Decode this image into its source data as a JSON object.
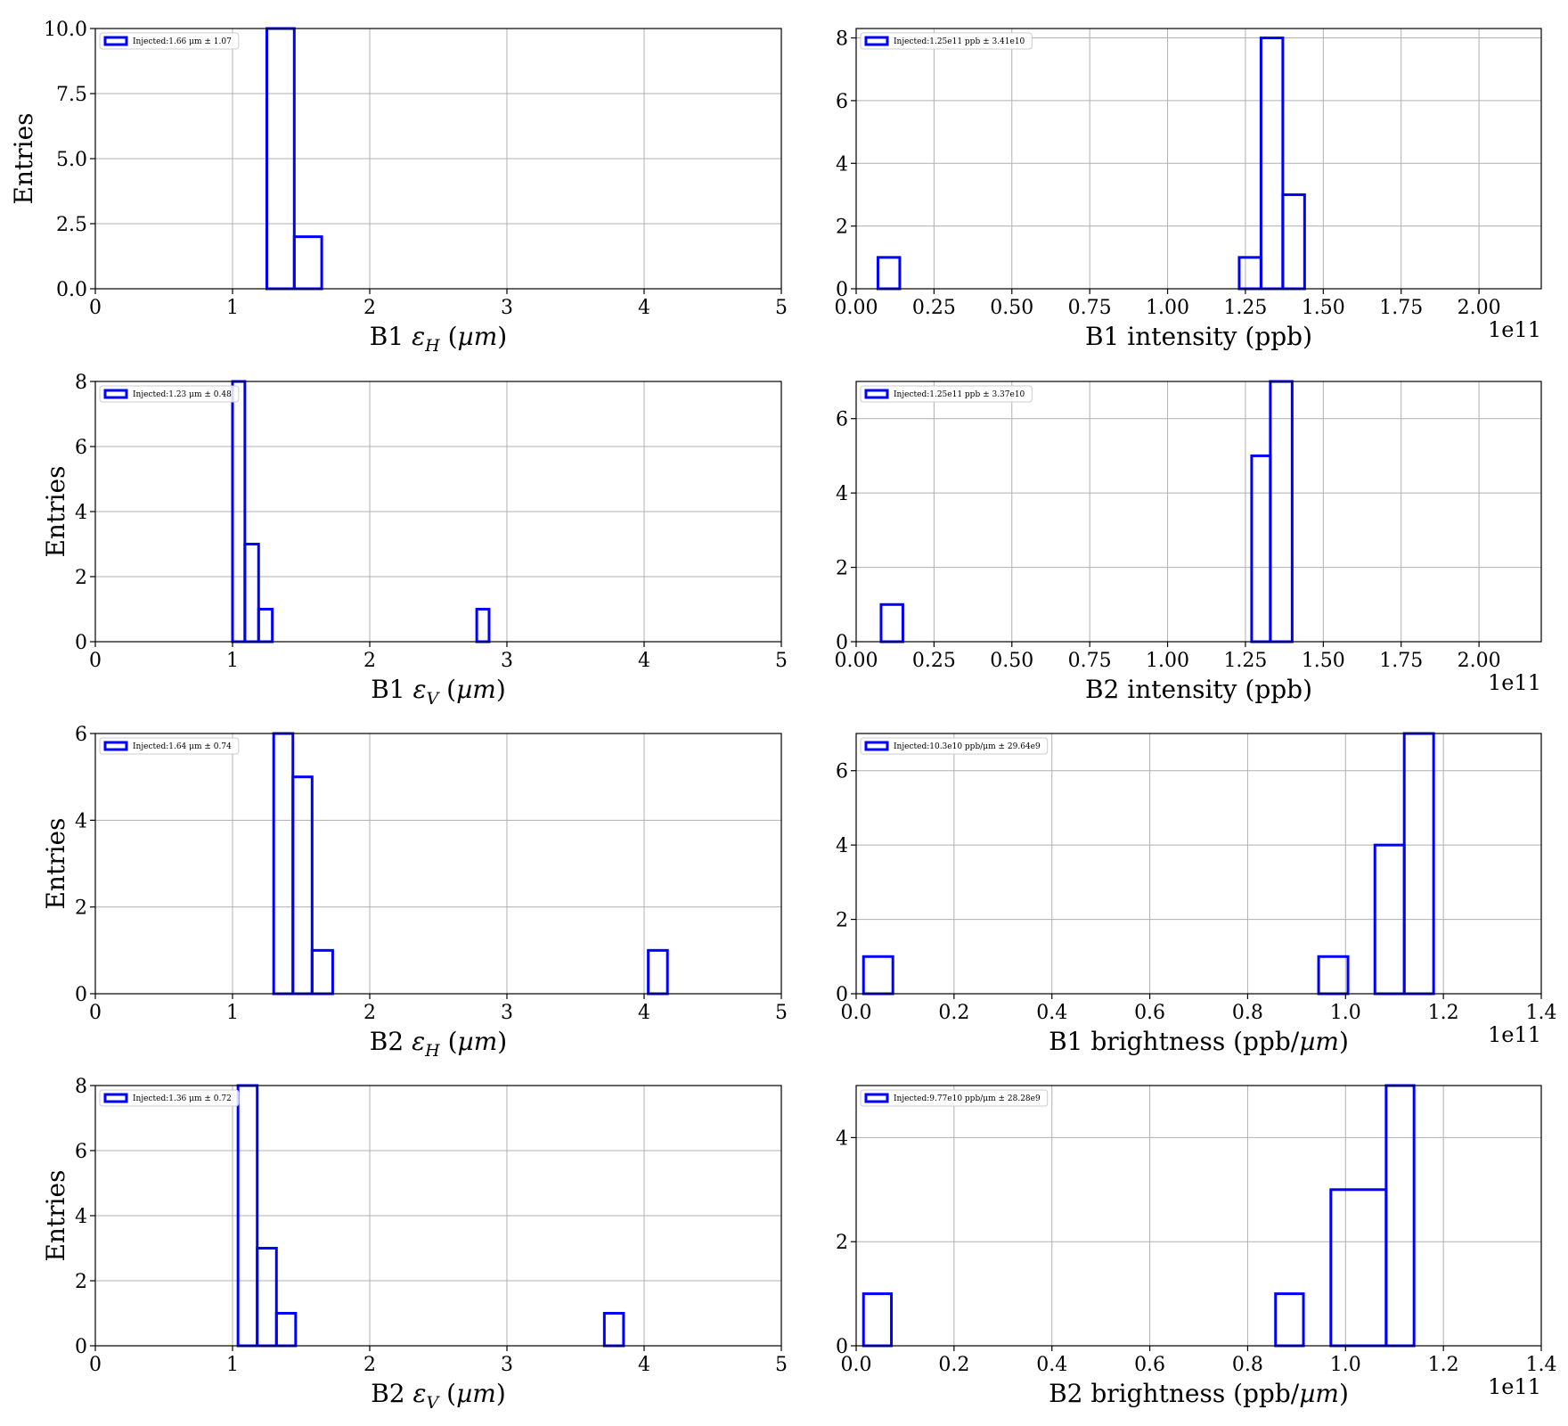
{
  "style": {
    "series_color": "#0000ff",
    "grid_color": "#b0b0b0"
  },
  "chart_data": [
    {
      "type": "histogram",
      "xlabel": "B1 εH (µm)",
      "ylabel": "Entries",
      "xlim": [
        0,
        5
      ],
      "ylim": [
        0,
        10.0
      ],
      "xticks": [
        "0",
        "1",
        "2",
        "3",
        "4",
        "5"
      ],
      "yticks": [
        "0.0",
        "2.5",
        "5.0",
        "7.5",
        "10.0"
      ],
      "offset_label": "",
      "legend": "Injected:1.66 μm ± 1.07",
      "legend_position": "upper-left",
      "grid": true,
      "bins": [
        {
          "x0": 1.25,
          "x1": 1.45,
          "count": 10
        },
        {
          "x0": 1.45,
          "x1": 1.65,
          "count": 2
        }
      ]
    },
    {
      "type": "histogram",
      "xlabel": "B1 intensity (ppb)",
      "ylabel": "",
      "xlim": [
        0,
        2.2
      ],
      "ylim": [
        0,
        8.3
      ],
      "xticks": [
        "0.00",
        "0.25",
        "0.50",
        "0.75",
        "1.00",
        "1.25",
        "1.50",
        "1.75",
        "2.00"
      ],
      "yticks": [
        "0",
        "2",
        "4",
        "6",
        "8"
      ],
      "offset_label": "1e11",
      "legend": "Injected:1.25e11 ppb ± 3.41e10",
      "legend_position": "upper-left",
      "grid": true,
      "bins": [
        {
          "x0": 0.07,
          "x1": 0.14,
          "count": 1
        },
        {
          "x0": 1.23,
          "x1": 1.3,
          "count": 1
        },
        {
          "x0": 1.3,
          "x1": 1.37,
          "count": 8
        },
        {
          "x0": 1.37,
          "x1": 1.44,
          "count": 3
        }
      ]
    },
    {
      "type": "histogram",
      "xlabel": "B1 εV (µm)",
      "ylabel": "Entries",
      "xlim": [
        0,
        5
      ],
      "ylim": [
        0,
        8.0
      ],
      "xticks": [
        "0",
        "1",
        "2",
        "3",
        "4",
        "5"
      ],
      "yticks": [
        "0",
        "2",
        "4",
        "6",
        "8"
      ],
      "offset_label": "",
      "legend": "Injected:1.23 μm ± 0.48",
      "legend_position": "upper-left",
      "grid": true,
      "bins": [
        {
          "x0": 1.0,
          "x1": 1.09,
          "count": 8
        },
        {
          "x0": 1.09,
          "x1": 1.19,
          "count": 3
        },
        {
          "x0": 1.19,
          "x1": 1.29,
          "count": 1
        },
        {
          "x0": 2.78,
          "x1": 2.87,
          "count": 1
        }
      ]
    },
    {
      "type": "histogram",
      "xlabel": "B2 intensity (ppb)",
      "ylabel": "",
      "xlim": [
        0,
        2.2
      ],
      "ylim": [
        0,
        7.0
      ],
      "xticks": [
        "0.00",
        "0.25",
        "0.50",
        "0.75",
        "1.00",
        "1.25",
        "1.50",
        "1.75",
        "2.00"
      ],
      "yticks": [
        "0",
        "2",
        "4",
        "6"
      ],
      "offset_label": "1e11",
      "legend": "Injected:1.25e11 ppb ± 3.37e10",
      "legend_position": "upper-left",
      "grid": true,
      "bins": [
        {
          "x0": 0.08,
          "x1": 0.15,
          "count": 1
        },
        {
          "x0": 1.27,
          "x1": 1.33,
          "count": 5
        },
        {
          "x0": 1.33,
          "x1": 1.4,
          "count": 7
        }
      ]
    },
    {
      "type": "histogram",
      "xlabel": "B2 εH (µm)",
      "ylabel": "Entries",
      "xlim": [
        0,
        5
      ],
      "ylim": [
        0,
        6.0
      ],
      "xticks": [
        "0",
        "1",
        "2",
        "3",
        "4",
        "5"
      ],
      "yticks": [
        "0",
        "2",
        "4",
        "6"
      ],
      "offset_label": "",
      "legend": "Injected:1.64 μm ± 0.74",
      "legend_position": "upper-left",
      "grid": true,
      "bins": [
        {
          "x0": 1.3,
          "x1": 1.44,
          "count": 6
        },
        {
          "x0": 1.44,
          "x1": 1.58,
          "count": 5
        },
        {
          "x0": 1.58,
          "x1": 1.73,
          "count": 1
        },
        {
          "x0": 4.03,
          "x1": 4.17,
          "count": 1
        }
      ]
    },
    {
      "type": "histogram",
      "xlabel": "B1 brightness (ppb/µm)",
      "ylabel": "",
      "xlim": [
        0,
        1.4
      ],
      "ylim": [
        0,
        7.0
      ],
      "xticks": [
        "0.0",
        "0.2",
        "0.4",
        "0.6",
        "0.8",
        "1.0",
        "1.2",
        "1.4"
      ],
      "yticks": [
        "0",
        "2",
        "4",
        "6"
      ],
      "offset_label": "1e11",
      "legend": "Injected:10.3e10 ppb/μm ± 29.64e9",
      "legend_position": "upper-left",
      "grid": true,
      "bins": [
        {
          "x0": 0.015,
          "x1": 0.075,
          "count": 1
        },
        {
          "x0": 0.945,
          "x1": 1.005,
          "count": 1
        },
        {
          "x0": 1.06,
          "x1": 1.12,
          "count": 4
        },
        {
          "x0": 1.12,
          "x1": 1.18,
          "count": 7
        }
      ]
    },
    {
      "type": "histogram",
      "xlabel": "B2 εV (µm)",
      "ylabel": "Entries",
      "xlim": [
        0,
        5
      ],
      "ylim": [
        0,
        8.0
      ],
      "xticks": [
        "0",
        "1",
        "2",
        "3",
        "4",
        "5"
      ],
      "yticks": [
        "0",
        "2",
        "4",
        "6",
        "8"
      ],
      "offset_label": "",
      "legend": "Injected:1.36 μm ± 0.72",
      "legend_position": "upper-left",
      "grid": true,
      "bins": [
        {
          "x0": 1.04,
          "x1": 1.18,
          "count": 8
        },
        {
          "x0": 1.18,
          "x1": 1.32,
          "count": 3
        },
        {
          "x0": 1.32,
          "x1": 1.46,
          "count": 1
        },
        {
          "x0": 3.71,
          "x1": 3.85,
          "count": 1
        }
      ]
    },
    {
      "type": "histogram",
      "xlabel": "B2 brightness (ppb/µm)",
      "ylabel": "",
      "xlim": [
        0,
        1.4
      ],
      "ylim": [
        0,
        5.0
      ],
      "xticks": [
        "0.0",
        "0.2",
        "0.4",
        "0.6",
        "0.8",
        "1.0",
        "1.2",
        "1.4"
      ],
      "yticks": [
        "0",
        "2",
        "4"
      ],
      "offset_label": "1e11",
      "legend": "Injected:9.77e10 ppb/μm ± 28.28e9",
      "legend_position": "upper-left",
      "grid": true,
      "bins": [
        {
          "x0": 0.015,
          "x1": 0.072,
          "count": 1
        },
        {
          "x0": 0.857,
          "x1": 0.914,
          "count": 1
        },
        {
          "x0": 0.97,
          "x1": 1.083,
          "count": 3
        },
        {
          "x0": 1.083,
          "x1": 1.14,
          "count": 5
        }
      ]
    }
  ]
}
